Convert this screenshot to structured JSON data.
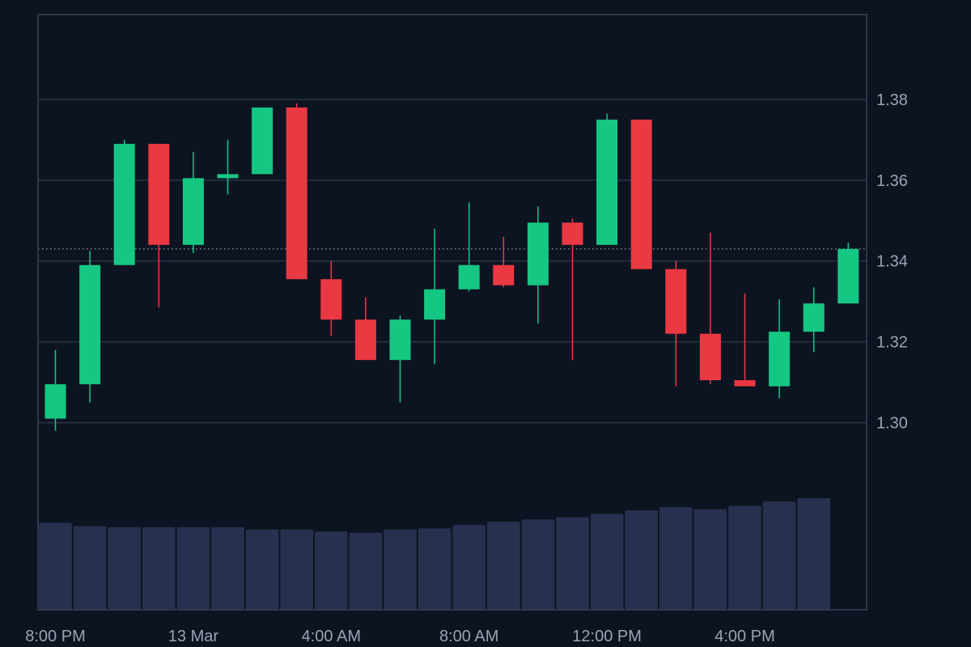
{
  "colors": {
    "background": "#0d1421",
    "gridline": "#2a3344",
    "border": "#3a4354",
    "axis_text": "#9aa3b2",
    "up": "#16c784",
    "down": "#ea3943",
    "volume": "#27304f",
    "last_price_line": "#8a93a6"
  },
  "chart_data": {
    "type": "candlestick",
    "y_axis": {
      "position": "right",
      "range": [
        1.2805,
        1.401
      ],
      "ticks": [
        "1.30",
        "1.32",
        "1.34",
        "1.36",
        "1.38"
      ]
    },
    "x_axis": {
      "labels": [
        {
          "label": "8:00 PM",
          "index": 0
        },
        {
          "label": "13 Mar",
          "index": 4
        },
        {
          "label": "4:00 AM",
          "index": 8
        },
        {
          "label": "8:00 AM",
          "index": 12
        },
        {
          "label": "12:00 PM",
          "index": 16
        },
        {
          "label": "4:00 PM",
          "index": 20
        }
      ]
    },
    "last_price": 1.343,
    "grid": true,
    "candles": [
      {
        "o": 1.301,
        "h": 1.318,
        "l": 1.298,
        "c": 1.3095
      },
      {
        "o": 1.3095,
        "h": 1.3425,
        "l": 1.305,
        "c": 1.339
      },
      {
        "o": 1.339,
        "h": 1.37,
        "l": 1.339,
        "c": 1.369
      },
      {
        "o": 1.369,
        "h": 1.369,
        "l": 1.3285,
        "c": 1.344
      },
      {
        "o": 1.344,
        "h": 1.367,
        "l": 1.342,
        "c": 1.3605
      },
      {
        "o": 1.3605,
        "h": 1.37,
        "l": 1.3565,
        "c": 1.3615
      },
      {
        "o": 1.3615,
        "h": 1.378,
        "l": 1.3615,
        "c": 1.378
      },
      {
        "o": 1.378,
        "h": 1.379,
        "l": 1.3355,
        "c": 1.3355
      },
      {
        "o": 1.3355,
        "h": 1.34,
        "l": 1.3215,
        "c": 1.3255
      },
      {
        "o": 1.3255,
        "h": 1.331,
        "l": 1.3155,
        "c": 1.3155
      },
      {
        "o": 1.3155,
        "h": 1.3265,
        "l": 1.305,
        "c": 1.3255
      },
      {
        "o": 1.3255,
        "h": 1.348,
        "l": 1.3145,
        "c": 1.333
      },
      {
        "o": 1.333,
        "h": 1.3545,
        "l": 1.3325,
        "c": 1.339
      },
      {
        "o": 1.339,
        "h": 1.346,
        "l": 1.3335,
        "c": 1.334
      },
      {
        "o": 1.334,
        "h": 1.3535,
        "l": 1.3245,
        "c": 1.3495
      },
      {
        "o": 1.3495,
        "h": 1.3505,
        "l": 1.3155,
        "c": 1.344
      },
      {
        "o": 1.344,
        "h": 1.3765,
        "l": 1.344,
        "c": 1.375
      },
      {
        "o": 1.375,
        "h": 1.375,
        "l": 1.338,
        "c": 1.338
      },
      {
        "o": 1.338,
        "h": 1.34,
        "l": 1.309,
        "c": 1.322
      },
      {
        "o": 1.322,
        "h": 1.347,
        "l": 1.3095,
        "c": 1.3105
      },
      {
        "o": 1.3105,
        "h": 1.332,
        "l": 1.309,
        "c": 1.309
      },
      {
        "o": 1.309,
        "h": 1.3305,
        "l": 1.306,
        "c": 1.3225
      },
      {
        "o": 1.3225,
        "h": 1.3335,
        "l": 1.3175,
        "c": 1.3295
      },
      {
        "o": 1.3295,
        "h": 1.3445,
        "l": 1.3295,
        "c": 1.343
      }
    ],
    "volume": [
      0.78,
      0.75,
      0.74,
      0.74,
      0.74,
      0.74,
      0.72,
      0.72,
      0.7,
      0.69,
      0.72,
      0.73,
      0.76,
      0.79,
      0.81,
      0.83,
      0.86,
      0.89,
      0.92,
      0.9,
      0.93,
      0.97,
      1.0
    ]
  }
}
